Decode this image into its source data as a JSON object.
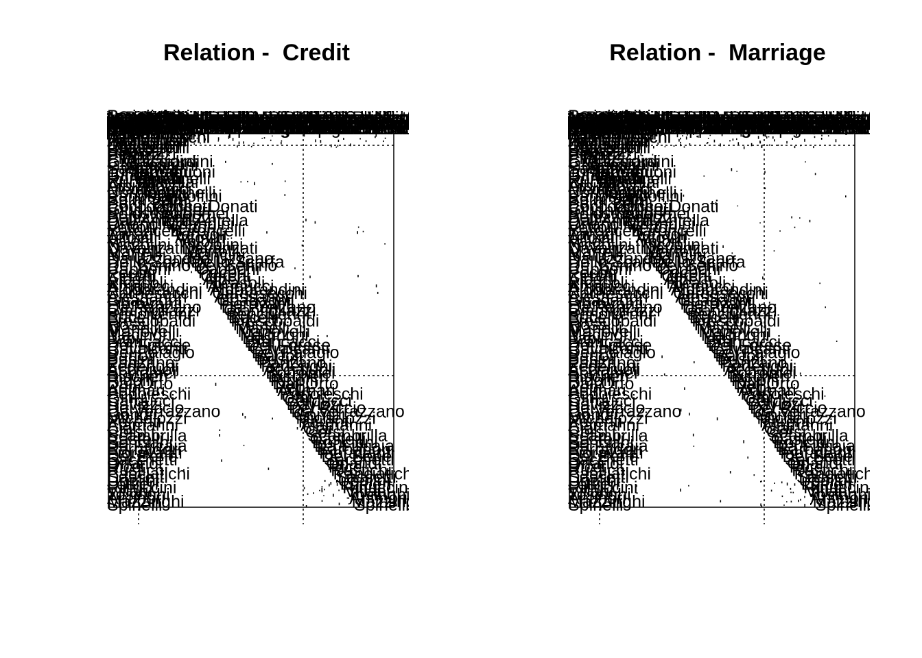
{
  "figure": {
    "panels": [
      {
        "title": "Relation -  Credit"
      },
      {
        "title": "Relation -  Marriage"
      }
    ]
  },
  "chart_data": [
    {
      "type": "heatmap",
      "title": "Relation -  Credit",
      "grid": "dotted partition lines",
      "visible_labels": [
        "Panciatichi",
        "Velluti",
        "Davanzati",
        "Serragli",
        "Bonsi",
        "Baldovinetti",
        "Lamberteschi",
        "Ardinghelli",
        "Dietisalvi",
        "Castellani",
        "Strozzi",
        "Peruzzi",
        "Pitti",
        "Guicciardini",
        "Guasconi",
        "Salviati",
        "Tornabuoni",
        "Ginori",
        "Rondinelli",
        "Rucellai",
        "Albizzi",
        "Medici",
        "Corbinelli",
        "Pandolfini",
        "Spini",
        "Bardi",
        "Cocco-Donati",
        "Giugni",
        "Solosmei",
        "Benizzi",
        "Dall'Antella",
        "Orlandini",
        "Vettori",
        "Baroncelli",
        "Tanagli",
        "Altoviti",
        "Valori",
        "Niccolini",
        "Davanzati",
        "Martelli",
        "Mancini",
        "Da Uzzano",
        "Dello Scarfa",
        "Del Benino",
        "Capponi",
        "Pecori",
        "Cerchi",
        "Alberti",
        "Ricasoli",
        "Arrigucci",
        "Aldobrandini",
        "Carnesecchi",
        "Alessandri",
        "Guadagni",
        "Fioravanti",
        "Da Panzano",
        "Gianfigliazzi",
        "Bencivenni",
        "Bucelli",
        "Frescobaldi",
        "Rossi",
        "Manelli",
        "Manovelli",
        "Macinghi",
        "Lapi",
        "Brancacci",
        "Del Forese",
        "Cavalcanti",
        "Del Palagio",
        "Bartoli",
        "Busini",
        "Panzano",
        "Federighi",
        "Acciaiuoli",
        "Borromei",
        "Bischeri",
        "Ridolfi",
        "Dall'Orto",
        "Pepi",
        "Adimari",
        "Popoleschi",
        "Gini",
        "Carducci",
        "Davizzi",
        "Del Riccio",
        "Da Verrazzano",
        "Gondi",
        "Michelozzi",
        "Parenti",
        "Alamanni",
        "Ciai",
        "Corsi",
        "Scambrilla",
        "Castelli",
        "Bonciani",
        "Da Filicaia",
        "Barbadori",
        "Fioravanti",
        "Del Bene",
        "Sacchetti",
        "Orlandi",
        "Ricci",
        "Rustichi",
        "Panciatichi",
        "Sassetti",
        "Ugolini",
        "Lottieri",
        "Rinuccini",
        "Villani",
        "Tosinghi",
        "Antinori",
        "Mazzinghi",
        "Spinelli"
      ]
    },
    {
      "type": "heatmap",
      "title": "Relation -  Marriage",
      "grid": "dotted partition lines",
      "visible_labels": [
        "Panciatichi",
        "Velluti",
        "Davanzati",
        "Serragli",
        "Bonsi",
        "Baldovinetti",
        "Lamberteschi",
        "Ardinghelli",
        "Dietisalvi",
        "Castellani",
        "Strozzi",
        "Peruzzi",
        "Pitti",
        "Guicciardini",
        "Guasconi",
        "Salviati",
        "Tornabuoni",
        "Ginori",
        "Rondinelli",
        "Rucellai",
        "Albizzi",
        "Medici",
        "Corbinelli",
        "Pandolfini",
        "Spini",
        "Bardi",
        "Cocco-Donati",
        "Giugni",
        "Solosmei",
        "Benizzi",
        "Dall'Antella",
        "Orlandini",
        "Vettori",
        "Baroncelli",
        "Tanagli",
        "Altoviti",
        "Valori",
        "Niccolini",
        "Davanzati",
        "Martelli",
        "Mancini",
        "Da Uzzano",
        "Dello Scarfa",
        "Del Benino",
        "Capponi",
        "Pecori",
        "Cerchi",
        "Alberti",
        "Ricasoli",
        "Arrigucci",
        "Aldobrandini",
        "Carnesecchi",
        "Alessandri",
        "Guadagni",
        "Fioravanti",
        "Da Panzano",
        "Gianfigliazzi",
        "Bencivenni",
        "Bucelli",
        "Frescobaldi",
        "Rossi",
        "Manelli",
        "Manovelli",
        "Macinghi",
        "Lapi",
        "Brancacci",
        "Del Forese",
        "Cavalcanti",
        "Del Palagio",
        "Bartoli",
        "Busini",
        "Panzano",
        "Federighi",
        "Acciaiuoli",
        "Borromei",
        "Bischeri",
        "Ridolfi",
        "Dall'Orto",
        "Pepi",
        "Adimari",
        "Popoleschi",
        "Gini",
        "Carducci",
        "Davizzi",
        "Del Riccio",
        "Da Verrazzano",
        "Gondi",
        "Michelozzi",
        "Parenti",
        "Alamanni",
        "Ciai",
        "Corsi",
        "Scambrilla",
        "Castelli",
        "Bonciani",
        "Da Filicaia",
        "Barbadori",
        "Fioravanti",
        "Del Bene",
        "Sacchetti",
        "Orlandi",
        "Ricci",
        "Rustichi",
        "Panciatichi",
        "Sassetti",
        "Ugolini",
        "Lottieri",
        "Rinuccini",
        "Villani",
        "Tosinghi",
        "Antinori",
        "Mazzinghi",
        "Spinelli"
      ]
    }
  ]
}
